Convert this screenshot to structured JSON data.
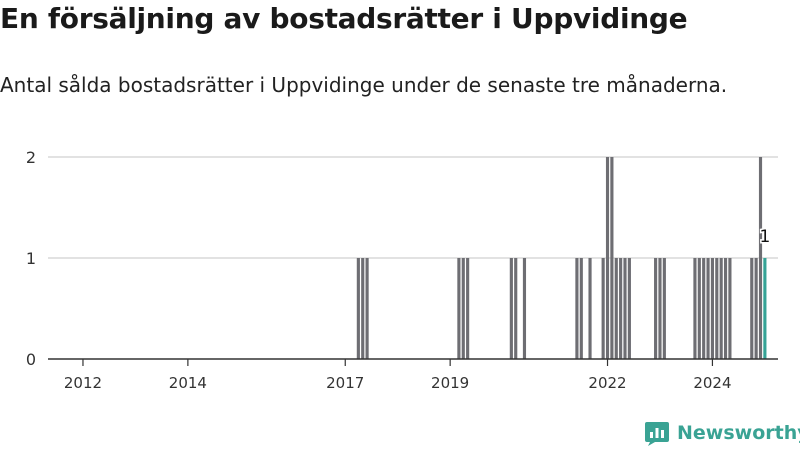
{
  "title": "En försäljning av bostadsrätter i Uppvidinge",
  "subtitle": "Antal sålda bostadsrätter i Uppvidinge under de senaste tre månaderna.",
  "brand": {
    "name": "Newsworthy",
    "icon": "newsworthy-logo-icon"
  },
  "colors": {
    "bar": "#6e6e73",
    "highlight": "#35a396",
    "grid": "#d9d9d9",
    "axis": "#333333"
  },
  "chart_data": {
    "type": "bar",
    "title": "",
    "xlabel": "",
    "ylabel": "",
    "xlim": [
      "2011-05",
      "2025-04"
    ],
    "ylim": [
      0,
      2
    ],
    "y_ticks": [
      0,
      1,
      2
    ],
    "x_ticks": [
      "2012",
      "2014",
      "2017",
      "2019",
      "2022",
      "2024"
    ],
    "grid": true,
    "legend": "none",
    "highlight_label": "1",
    "series": [
      {
        "values": [
          {
            "x": "2017-04",
            "y": 1
          },
          {
            "x": "2017-05",
            "y": 1
          },
          {
            "x": "2017-06",
            "y": 1
          },
          {
            "x": "2019-03",
            "y": 1
          },
          {
            "x": "2019-04",
            "y": 1
          },
          {
            "x": "2019-05",
            "y": 1
          },
          {
            "x": "2020-03",
            "y": 1
          },
          {
            "x": "2020-04",
            "y": 1
          },
          {
            "x": "2020-06",
            "y": 1
          },
          {
            "x": "2021-06",
            "y": 1
          },
          {
            "x": "2021-07",
            "y": 1
          },
          {
            "x": "2021-09",
            "y": 1
          },
          {
            "x": "2021-12",
            "y": 1
          },
          {
            "x": "2022-01",
            "y": 2
          },
          {
            "x": "2022-02",
            "y": 2
          },
          {
            "x": "2022-03",
            "y": 1
          },
          {
            "x": "2022-04",
            "y": 1
          },
          {
            "x": "2022-05",
            "y": 1
          },
          {
            "x": "2022-06",
            "y": 1
          },
          {
            "x": "2022-12",
            "y": 1
          },
          {
            "x": "2023-01",
            "y": 1
          },
          {
            "x": "2023-02",
            "y": 1
          },
          {
            "x": "2023-09",
            "y": 1
          },
          {
            "x": "2023-10",
            "y": 1
          },
          {
            "x": "2023-11",
            "y": 1
          },
          {
            "x": "2023-12",
            "y": 1
          },
          {
            "x": "2024-01",
            "y": 1
          },
          {
            "x": "2024-02",
            "y": 1
          },
          {
            "x": "2024-03",
            "y": 1
          },
          {
            "x": "2024-04",
            "y": 1
          },
          {
            "x": "2024-05",
            "y": 1
          },
          {
            "x": "2024-10",
            "y": 1
          },
          {
            "x": "2024-11",
            "y": 1
          },
          {
            "x": "2024-12",
            "y": 2
          },
          {
            "x": "2025-01",
            "y": 1,
            "highlight": true
          }
        ]
      }
    ]
  }
}
